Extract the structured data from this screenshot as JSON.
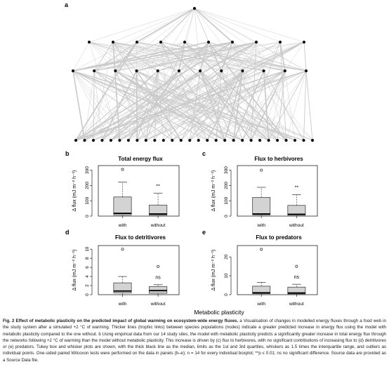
{
  "figure": {
    "panel_a_letter": "a",
    "x_axis_label": "Metabolic plasticity",
    "layers": [
      1,
      10,
      12,
      28
    ],
    "colors": {
      "node": "#111111",
      "link": "#c9c9c9",
      "box_fill": "#d3d3d3",
      "box_edge": "#444444",
      "median": "#000000"
    }
  },
  "chart_data": [
    {
      "panel": "b",
      "type": "boxplot",
      "title": "Total energy flux",
      "ylabel": "Δ flux (mJ m⁻² h⁻¹)",
      "yticks": [
        "0",
        "100",
        "200",
        "300"
      ],
      "ylim": [
        0,
        330
      ],
      "categories": [
        "with",
        "without"
      ],
      "boxes": [
        {
          "q1": 8,
          "median": 18,
          "q3": 125,
          "whisker_low": 0,
          "whisker_high": 222,
          "outliers": [
            305
          ]
        },
        {
          "q1": 6,
          "median": 14,
          "q3": 72,
          "whisker_low": 0,
          "whisker_high": 150,
          "outliers": []
        }
      ],
      "annotation": "**",
      "annotation_box": 1
    },
    {
      "panel": "c",
      "type": "boxplot",
      "title": "Flux to herbivores",
      "ylabel": "Δ flux (mJ m⁻² h⁻¹)",
      "yticks": [
        "0",
        "100",
        "200",
        "300"
      ],
      "ylim": [
        0,
        330
      ],
      "categories": [
        "with",
        "without"
      ],
      "boxes": [
        {
          "q1": 8,
          "median": 14,
          "q3": 122,
          "whisker_low": 0,
          "whisker_high": 188,
          "outliers": [
            300
          ]
        },
        {
          "q1": 6,
          "median": 12,
          "q3": 70,
          "whisker_low": 0,
          "whisker_high": 140,
          "outliers": []
        }
      ],
      "annotation": "**",
      "annotation_box": 1
    },
    {
      "panel": "d",
      "type": "boxplot",
      "title": "Flux to detritivores",
      "ylabel": "Δ flux (mJ m⁻² h⁻¹)",
      "yticks": [
        "0",
        "2",
        "4",
        "6",
        "8",
        "10"
      ],
      "ylim": [
        0,
        10.8
      ],
      "categories": [
        "with",
        "without"
      ],
      "boxes": [
        {
          "q1": 0.4,
          "median": 0.8,
          "q3": 2.6,
          "whisker_low": 0,
          "whisker_high": 4.0,
          "outliers": [
            10
          ]
        },
        {
          "q1": 0.3,
          "median": 0.9,
          "q3": 1.8,
          "whisker_low": 0,
          "whisker_high": 2.2,
          "outliers": [
            6.2
          ]
        }
      ],
      "annotation": "ns",
      "annotation_box": 1
    },
    {
      "panel": "e",
      "type": "boxplot",
      "title": "Flux to predators",
      "ylabel": "Δ flux (mJ m⁻² h⁻¹)",
      "yticks": [
        "0",
        "10",
        "20"
      ],
      "ylim": [
        0,
        26
      ],
      "categories": [
        "with",
        "without"
      ],
      "boxes": [
        {
          "q1": 0.5,
          "median": 1.0,
          "q3": 4.5,
          "whisker_low": 0,
          "whisker_high": 6.5,
          "outliers": [
            24
          ]
        },
        {
          "q1": 0.4,
          "median": 0.9,
          "q3": 4.0,
          "whisker_low": 0,
          "whisker_high": 5.5,
          "outliers": [
            15
          ]
        }
      ],
      "annotation": "ns",
      "annotation_box": 1
    }
  ],
  "caption": {
    "title": "Fig. 2 Effect of metabolic plasticity on the predicted impact of global warming on ecosystem-wide energy fluxes.",
    "body": "a Visualisation of changes in modelled energy fluxes through a food web in the study system after a simulated +2 °C of warming. Thicker lines (trophic links) between species populations (nodes) indicate a greater predicted increase in energy flux using the model with metabolic plasticity compared to the one without. b Using empirical data from our 14 study sites, the model with metabolic plasticity predicts a significantly greater increase in total energy flux through the networks following +2 °C of warming than the model without metabolic plasticity. This increase is driven by (c) flux to herbivores, with no significant contributions of increasing flux to (d) detritivores or (e) predators. Tukey box and whisker plots are shown, with the thick black line as the median, limits as the 1st and 3rd quartiles, whiskers as 1.5 times the interquartile range, and outliers as individual points. One-sided paired Wilcoxon tests were performed on the data in panels (b–e); n = 14 for every individual boxplot; **p ≤ 0.01; ns no significant difference. Source data are provided as a Source Data file."
  }
}
